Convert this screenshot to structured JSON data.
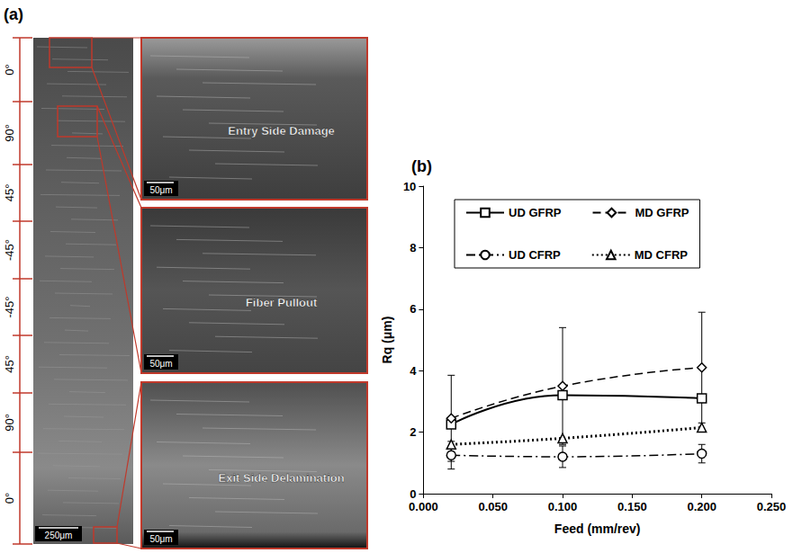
{
  "panel_a": {
    "label": "(a)",
    "layers": [
      "0°",
      "90°",
      "45°",
      "-45°",
      "-45°",
      "45°",
      "90°",
      "0°"
    ],
    "scale_bar": "250μm",
    "insets": [
      {
        "label": "Entry Side Damage",
        "scale_bar": "50μm"
      },
      {
        "label": "Fiber Pullout",
        "scale_bar": "50μm"
      },
      {
        "label": "Exit Side Delamination",
        "scale_bar": "50μm"
      }
    ]
  },
  "chart_data": {
    "label": "(b)",
    "type": "line",
    "x_label": "Feed (mm/rev)",
    "y_label": "Rq (μm)",
    "x": [
      0.02,
      0.1,
      0.2
    ],
    "xlim": [
      0,
      0.25
    ],
    "xticks": [
      {
        "value": 0,
        "label": "0.000"
      },
      {
        "value": 0.05,
        "label": "0.050"
      },
      {
        "value": 0.1,
        "label": "0.100"
      },
      {
        "value": 0.15,
        "label": "0.150"
      },
      {
        "value": 0.2,
        "label": "0.200"
      },
      {
        "value": 0.25,
        "label": "0.250"
      }
    ],
    "ylim": [
      0,
      10
    ],
    "yticks": [
      0,
      2,
      4,
      6,
      8,
      10
    ],
    "grid": false,
    "legend": "top",
    "series": [
      {
        "name": "UD GFRP",
        "color": "#000000",
        "marker": "square",
        "line_style": "solid",
        "values": [
          2.25,
          3.2,
          3.1
        ]
      },
      {
        "name": "MD GFRP",
        "color": "#000000",
        "marker": "diamond",
        "line_style": "dashed",
        "values": [
          2.45,
          3.5,
          4.1
        ],
        "errors": [
          1.4,
          1.9,
          1.8
        ]
      },
      {
        "name": "UD CFRP",
        "color": "#000000",
        "marker": "circle",
        "line_style": "dashdot",
        "values": [
          1.25,
          1.2,
          1.3
        ],
        "errors": [
          0.45,
          0.35,
          0.3
        ]
      },
      {
        "name": "MD CFRP",
        "color": "#000000",
        "marker": "triangle",
        "line_style": "dotted",
        "values": [
          1.6,
          1.8,
          2.15
        ]
      }
    ]
  }
}
